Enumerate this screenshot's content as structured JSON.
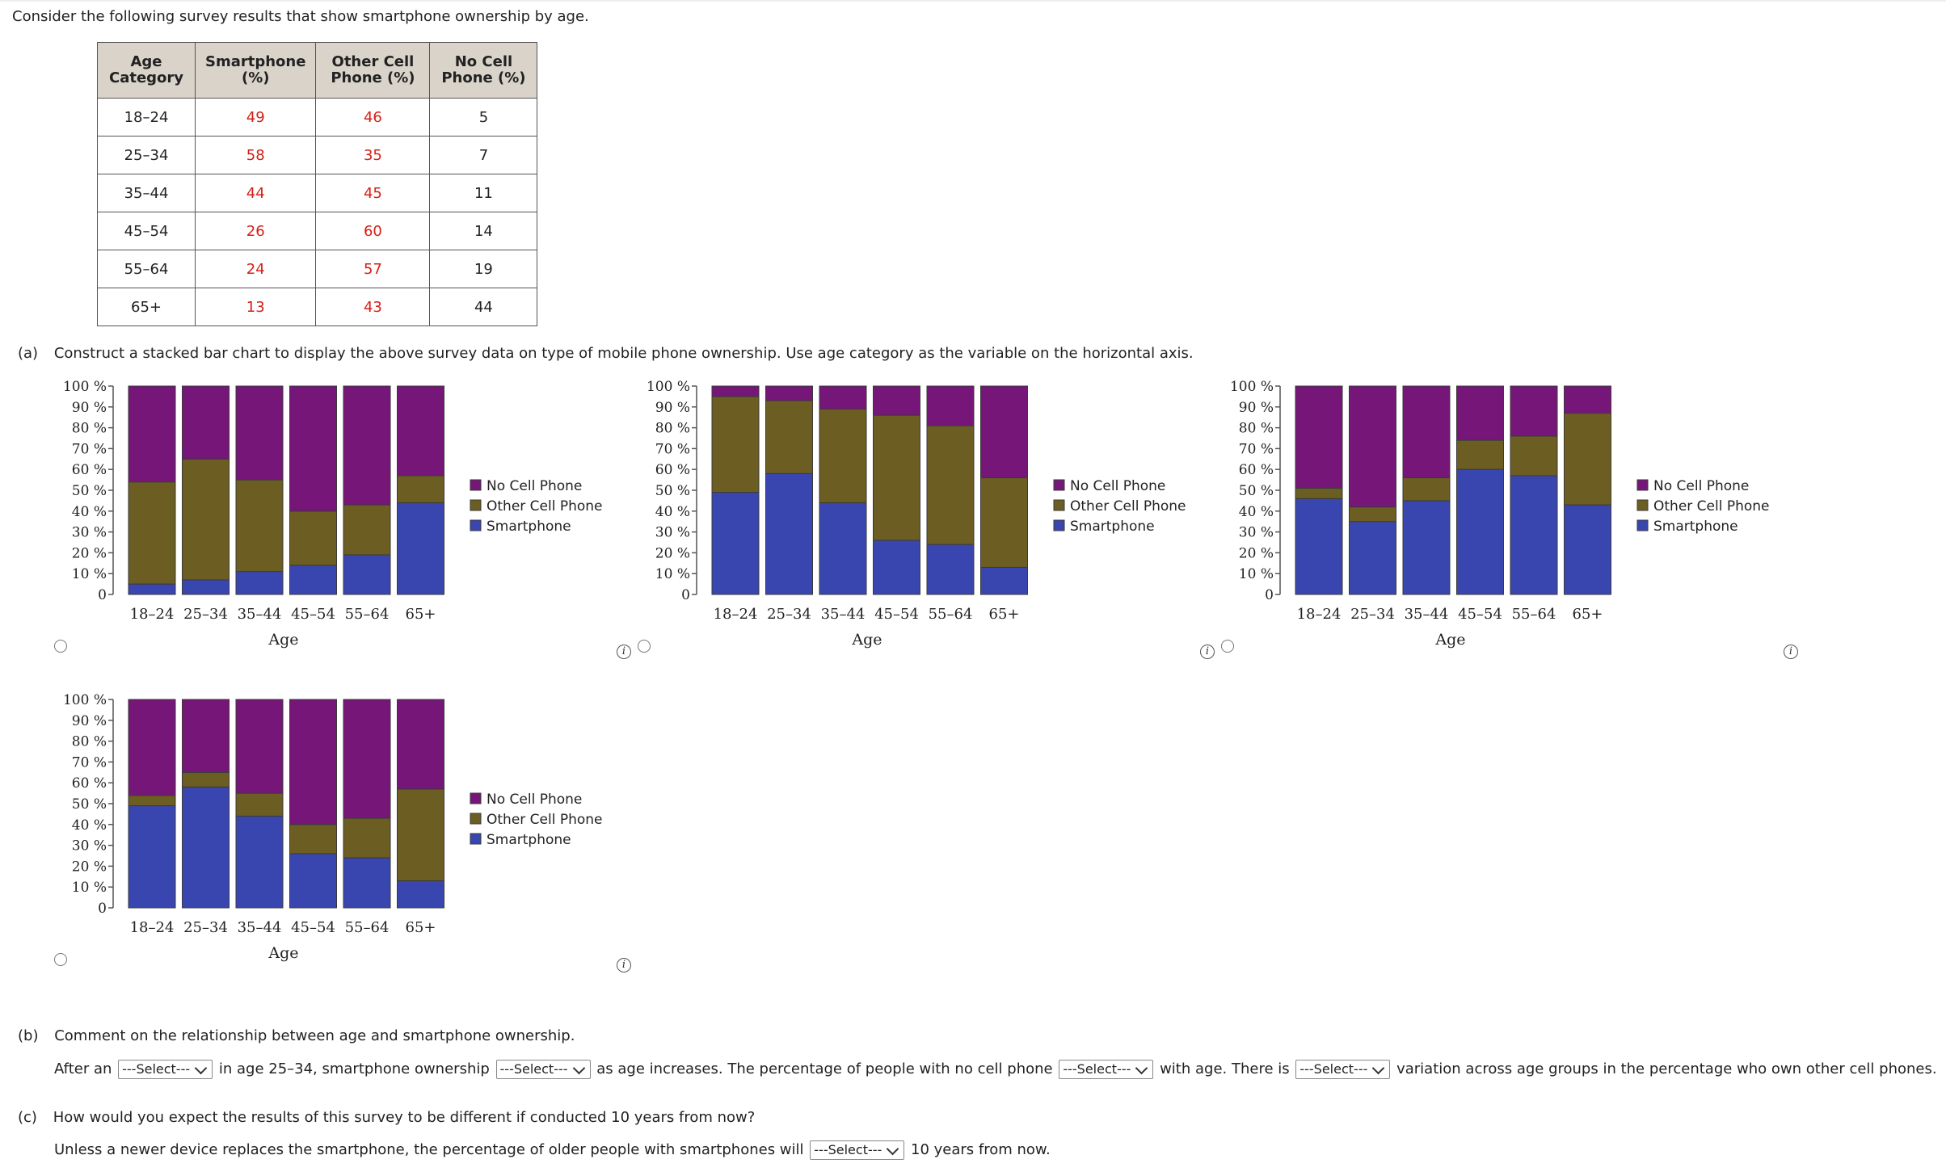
{
  "intro": "Consider the following survey results that show smartphone ownership by age.",
  "table": {
    "headers": [
      [
        "Age",
        "Category"
      ],
      [
        "Smartphone",
        "(%)"
      ],
      [
        "Other Cell",
        "Phone (%)"
      ],
      [
        "No Cell",
        "Phone (%)"
      ]
    ],
    "rows": [
      [
        "18–24",
        "49",
        "46",
        "5"
      ],
      [
        "25–34",
        "58",
        "35",
        "7"
      ],
      [
        "35–44",
        "44",
        "45",
        "11"
      ],
      [
        "45–54",
        "26",
        "60",
        "14"
      ],
      [
        "55–64",
        "24",
        "57",
        "19"
      ],
      [
        "65+",
        "13",
        "43",
        "44"
      ]
    ]
  },
  "part_a": {
    "label": "(a)",
    "text": "Construct a stacked bar chart to display the above survey data on type of mobile phone ownership. Use age category as the variable on the horizontal axis."
  },
  "colors": {
    "smartphone": "#3a46b0",
    "other_cell": "#6c5d22",
    "no_cell": "#761678",
    "axis": "#555555"
  },
  "chart_data": [
    {
      "type": "bar",
      "stacked": true,
      "option": "option-1",
      "categories": [
        "18–24",
        "25–34",
        "35–44",
        "45–54",
        "55–64",
        "65+"
      ],
      "series": [
        {
          "name": "Smartphone",
          "values": [
            5,
            7,
            11,
            14,
            19,
            44
          ]
        },
        {
          "name": "Other Cell Phone",
          "values": [
            49,
            58,
            44,
            26,
            24,
            13
          ]
        },
        {
          "name": "No Cell Phone",
          "values": [
            46,
            35,
            45,
            60,
            57,
            43
          ]
        }
      ],
      "xlabel": "Age",
      "ylabel": "",
      "yticks": [
        "0",
        "10 %",
        "20 %",
        "30 %",
        "40 %",
        "50 %",
        "60 %",
        "70 %",
        "80 %",
        "90 %",
        "100 %"
      ],
      "ylim": [
        0,
        100
      ],
      "legend": [
        "No Cell Phone",
        "Other Cell Phone",
        "Smartphone"
      ],
      "legend_position": "right"
    },
    {
      "type": "bar",
      "stacked": true,
      "option": "option-2",
      "categories": [
        "18–24",
        "25–34",
        "35–44",
        "45–54",
        "55–64",
        "65+"
      ],
      "series": [
        {
          "name": "Smartphone",
          "values": [
            49,
            58,
            44,
            26,
            24,
            13
          ]
        },
        {
          "name": "Other Cell Phone",
          "values": [
            46,
            35,
            45,
            60,
            57,
            43
          ]
        },
        {
          "name": "No Cell Phone",
          "values": [
            5,
            7,
            11,
            14,
            19,
            44
          ]
        }
      ],
      "xlabel": "Age",
      "ylabel": "",
      "yticks": [
        "0",
        "10 %",
        "20 %",
        "30 %",
        "40 %",
        "50 %",
        "60 %",
        "70 %",
        "80 %",
        "90 %",
        "100 %"
      ],
      "ylim": [
        0,
        100
      ],
      "legend": [
        "No Cell Phone",
        "Other Cell Phone",
        "Smartphone"
      ],
      "legend_position": "right"
    },
    {
      "type": "bar",
      "stacked": true,
      "option": "option-3",
      "categories": [
        "18–24",
        "25–34",
        "35–44",
        "45–54",
        "55–64",
        "65+"
      ],
      "series": [
        {
          "name": "Smartphone",
          "values": [
            46,
            35,
            45,
            60,
            57,
            43
          ]
        },
        {
          "name": "Other Cell Phone",
          "values": [
            5,
            7,
            11,
            14,
            19,
            44
          ]
        },
        {
          "name": "No Cell Phone",
          "values": [
            49,
            58,
            44,
            26,
            24,
            13
          ]
        }
      ],
      "xlabel": "Age",
      "ylabel": "",
      "yticks": [
        "0",
        "10 %",
        "20 %",
        "30 %",
        "40 %",
        "50 %",
        "60 %",
        "70 %",
        "80 %",
        "90 %",
        "100 %"
      ],
      "ylim": [
        0,
        100
      ],
      "legend": [
        "No Cell Phone",
        "Other Cell Phone",
        "Smartphone"
      ],
      "legend_position": "right"
    },
    {
      "type": "bar",
      "stacked": true,
      "option": "option-4",
      "categories": [
        "18–24",
        "25–34",
        "35–44",
        "45–54",
        "55–64",
        "65+"
      ],
      "series": [
        {
          "name": "Smartphone",
          "values": [
            49,
            58,
            44,
            26,
            24,
            13
          ]
        },
        {
          "name": "Other Cell Phone",
          "values": [
            5,
            7,
            11,
            14,
            19,
            44
          ]
        },
        {
          "name": "No Cell Phone",
          "values": [
            46,
            35,
            45,
            60,
            57,
            43
          ]
        }
      ],
      "xlabel": "Age",
      "ylabel": "",
      "yticks": [
        "0",
        "10 %",
        "20 %",
        "30 %",
        "40 %",
        "50 %",
        "60 %",
        "70 %",
        "80 %",
        "90 %",
        "100 %"
      ],
      "ylim": [
        0,
        100
      ],
      "legend": [
        "No Cell Phone",
        "Other Cell Phone",
        "Smartphone"
      ],
      "legend_position": "right"
    }
  ],
  "info_icon": "info-icon",
  "info_glyph": "i",
  "part_b": {
    "label": "(b)",
    "question": "Comment on the relationship between age and smartphone ownership.",
    "s1": "After an",
    "s2": "in age 25–34, smartphone ownership",
    "s3": "as age increases. The percentage of people with no cell phone",
    "s4": "with age. There is",
    "s5": "variation across age groups in the percentage who own other cell phones.",
    "select1": "---Select---",
    "select2": "---Select---",
    "select3": "---Select---",
    "select4": "---Select---"
  },
  "part_c": {
    "label": "(c)",
    "question": "How would you expect the results of this survey to be different if conducted 10 years from now?",
    "s1": "Unless a newer device replaces the smartphone, the percentage of older people with smartphones will",
    "s2": "10 years from now.",
    "select1": "---Select---"
  }
}
